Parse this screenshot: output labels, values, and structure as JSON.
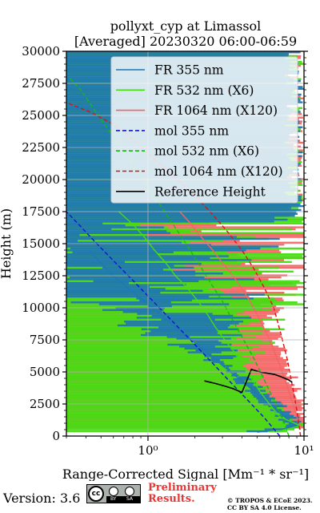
{
  "chart_data": {
    "type": "line",
    "title": "pollyxt_cyp at Limassol",
    "subtitle": "[Averaged] 20230320 06:00-06:59",
    "xlabel": "Range-Corrected Signal [Mm⁻¹ * sr⁻¹]",
    "ylabel": "Height (m)",
    "xscale": "log",
    "xlim": [
      0.3,
      10
    ],
    "ylim": [
      0,
      30000
    ],
    "xticks": [
      1,
      10
    ],
    "xtick_labels": [
      "10⁰",
      "10¹"
    ],
    "yticks": [
      0,
      2500,
      5000,
      7500,
      10000,
      12500,
      15000,
      17500,
      20000,
      22500,
      25000,
      27500,
      30000
    ],
    "grid": true,
    "legend_position": "upper right",
    "series": [
      {
        "name": "FR 355 nm",
        "color": "#1f77b4",
        "style": "solid",
        "x": [
          5.0,
          9.0,
          7.5,
          6.0,
          4.8,
          3.8,
          3.0,
          2.4,
          1.9,
          1.5,
          1.2,
          0.95,
          0.75,
          0.6,
          0.5,
          0.42
        ],
        "y": [
          300,
          700,
          1500,
          2500,
          3500,
          4500,
          5500,
          6500,
          7500,
          8500,
          9500,
          10500,
          11500,
          12500,
          13500,
          14500
        ]
      },
      {
        "name": "FR 532 nm (X6)",
        "color": "#44dd11",
        "style": "solid",
        "x": [
          6.5,
          9.5,
          7.0,
          6.0,
          5.2,
          4.6,
          4.0,
          3.6,
          3.1,
          2.7,
          2.4,
          2.1,
          1.8,
          1.5,
          1.3,
          1.1,
          0.95,
          0.8,
          0.65
        ],
        "y": [
          300,
          800,
          1500,
          2500,
          3500,
          4500,
          5500,
          6500,
          7500,
          8500,
          9500,
          10500,
          11500,
          12500,
          13500,
          14500,
          15500,
          16500,
          17500
        ]
      },
      {
        "name": "FR 1064 nm (X120)",
        "color": "#f46464",
        "style": "solid",
        "x": [
          9.5,
          9.0,
          8.5,
          8.0,
          7.5,
          7.0,
          6.5,
          6.0,
          5.5,
          5.0,
          4.5,
          4.0,
          3.5,
          3.0,
          2.6,
          2.2,
          1.9,
          1.6
        ],
        "y": [
          500,
          1500,
          2500,
          3500,
          4500,
          5500,
          6500,
          7500,
          8500,
          9500,
          10500,
          11500,
          12500,
          13500,
          14500,
          15500,
          16500,
          17500
        ]
      },
      {
        "name": "mol 355 nm",
        "color": "#1111dd",
        "style": "dashed",
        "x": [
          7.0,
          5.5,
          4.2,
          3.2,
          2.45,
          1.87,
          1.42,
          1.08,
          0.82,
          0.62,
          0.47,
          0.36,
          0.3
        ],
        "y": [
          0,
          1500,
          3000,
          4500,
          6000,
          7500,
          9000,
          10500,
          12000,
          13500,
          15000,
          16500,
          17500
        ]
      },
      {
        "name": "mol 532 nm (X6)",
        "color": "#11bb11",
        "style": "dashed",
        "x": [
          8.0,
          7.2,
          6.3,
          5.5,
          4.8,
          4.1,
          3.5,
          3.0,
          2.5,
          2.1,
          1.75,
          1.45,
          1.2,
          1.0,
          0.82,
          0.67,
          0.55,
          0.45,
          0.37,
          0.31
        ],
        "y": [
          0,
          1500,
          3000,
          4500,
          6000,
          7500,
          9000,
          10500,
          12000,
          13500,
          15000,
          16500,
          18000,
          19500,
          21000,
          22500,
          24000,
          25500,
          27000,
          28000
        ]
      },
      {
        "name": "mol 1064 nm (X120)",
        "color": "#dd1111",
        "style": "dashed",
        "x": [
          9.5,
          9.0,
          8.4,
          7.8,
          7.1,
          6.4,
          5.6,
          4.8,
          4.0,
          3.2,
          2.5,
          1.9,
          1.4,
          1.0,
          0.75,
          0.56,
          0.42,
          0.3
        ],
        "y": [
          0,
          2000,
          4000,
          6000,
          8000,
          10000,
          11500,
          13000,
          14500,
          16000,
          17500,
          19000,
          20500,
          22000,
          23500,
          24500,
          25300,
          26000
        ]
      },
      {
        "name": "Reference Height",
        "color": "#000000",
        "style": "solid",
        "x": [
          2.3,
          2.7,
          3.1,
          3.5,
          4.0,
          4.6,
          5.2,
          5.8,
          6.5,
          7.2,
          7.9,
          8.4
        ],
        "y": [
          4300,
          4100,
          3900,
          3700,
          3400,
          5200,
          5000,
          4900,
          4800,
          4600,
          4400,
          4200
        ]
      }
    ]
  },
  "footer": {
    "version": "Version: 3.6",
    "cc_badge": [
      "BY",
      "SA"
    ],
    "preliminary_line1": "Preliminary",
    "preliminary_line2": "Results.",
    "copyright_line1": "© TROPOS & ECoE 2023.",
    "copyright_line2": "CC BY SA 4.0 License."
  }
}
